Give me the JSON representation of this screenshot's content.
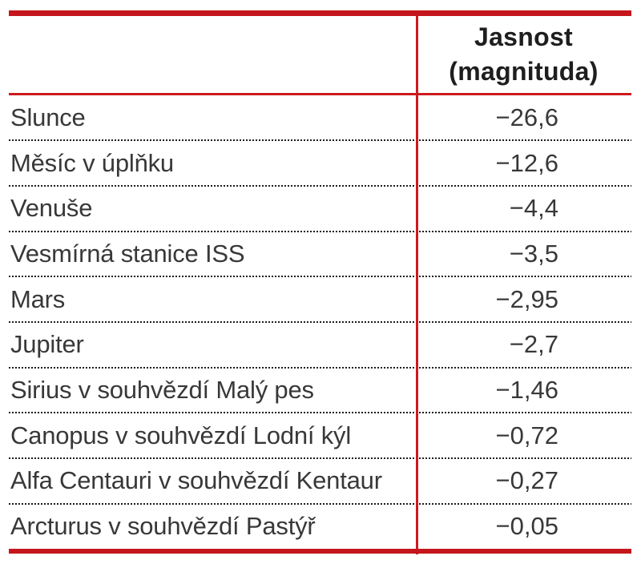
{
  "table": {
    "header": {
      "col2_line1": "Jasnost",
      "col2_line2": "(magnituda)"
    },
    "rows": [
      {
        "label": "Slunce",
        "value": "−26,6"
      },
      {
        "label": "Měsíc v úplňku",
        "value": "−12,6"
      },
      {
        "label": "Venuše",
        "value": "−4,4"
      },
      {
        "label": "Vesmírná stanice ISS",
        "value": "−3,5"
      },
      {
        "label": "Mars",
        "value": "−2,95"
      },
      {
        "label": "Jupiter",
        "value": "−2,7"
      },
      {
        "label": "Sirius v souhvězdí Malý pes",
        "value": "−1,46"
      },
      {
        "label": "Canopus v souhvězdí Lodní kýl",
        "value": "−0,72"
      },
      {
        "label": "Alfa Centauri v souhvězdí Kentaur",
        "value": "−0,27"
      },
      {
        "label": "Arcturus v souhvězdí Pastýř",
        "value": "−0,05"
      }
    ],
    "colors": {
      "accent_red": "#c4161c",
      "line_red": "#cc1a1f",
      "body_text": "#383838",
      "header_text": "#1e1e1e",
      "dot_separator": "#1c1c1c"
    }
  },
  "chart_data": {
    "type": "table",
    "title": "",
    "columns": [
      "",
      "Jasnost (magnituda)"
    ],
    "rows": [
      [
        "Slunce",
        "−26,6"
      ],
      [
        "Měsíc v úplňku",
        "−12,6"
      ],
      [
        "Venuše",
        "−4,4"
      ],
      [
        "Vesmírná stanice ISS",
        "−3,5"
      ],
      [
        "Mars",
        "−2,95"
      ],
      [
        "Jupiter",
        "−2,7"
      ],
      [
        "Sirius v souhvězdí Malý pes",
        "−1,46"
      ],
      [
        "Canopus v souhvězdí Lodní kýl",
        "−0,72"
      ],
      [
        "Alfa Centauri v souhvězdí Kentaur",
        "−0,27"
      ],
      [
        "Arcturus v souhvězdí Pastýř",
        "−0,05"
      ]
    ]
  }
}
